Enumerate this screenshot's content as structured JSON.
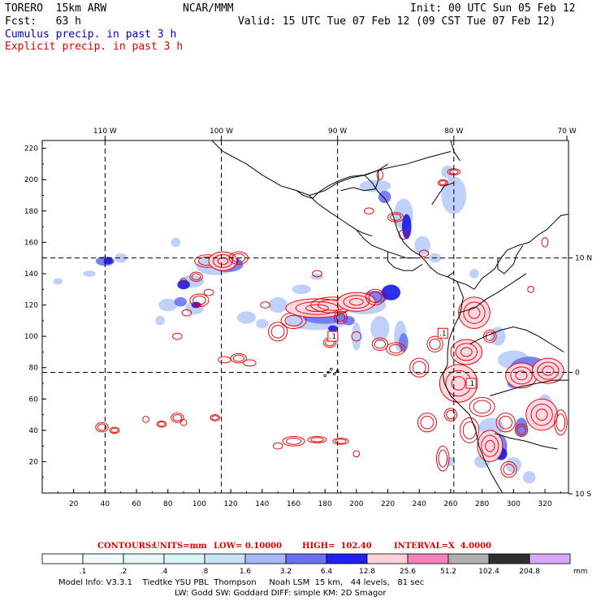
{
  "header": {
    "model": "TORERO  15km ARW",
    "org": "NCAR/MMM",
    "init": "Init: 00 UTC Sun 05 Feb 12",
    "fcst": "Fcst:   63 h",
    "valid": "Valid: 15 UTC Tue 07 Feb 12 (09 CST Tue 07 Feb 12)",
    "legend_cumulus": "Cumulus precip. in past 3 h",
    "legend_explicit": "Explicit precip. in past 3 h"
  },
  "map": {
    "lon_labels": [
      "110 W",
      "100 W",
      "90 W",
      "80 W",
      "70 W"
    ],
    "lat_labels": [
      "10 N",
      "0",
      "10 S"
    ],
    "x_ticks": [
      "20",
      "40",
      "60",
      "80",
      "100",
      "120",
      "140",
      "160",
      "180",
      "200",
      "220",
      "240",
      "260",
      "280",
      "300",
      "320"
    ],
    "y_ticks": [
      "20",
      "40",
      "60",
      "80",
      "100",
      "120",
      "140",
      "160",
      "180",
      "200",
      "220"
    ],
    "x_range": [
      0,
      335
    ],
    "y_range": [
      0,
      225
    ],
    "grid_lines": {
      "lon_x": [
        40,
        114,
        188,
        262
      ],
      "lat_y": [
        150,
        77
      ]
    },
    "markers": [
      {
        "label": ".1",
        "x": 185,
        "y": 100
      },
      {
        "label": ".1",
        "x": 255,
        "y": 102
      },
      {
        "label": ".1",
        "x": 273,
        "y": 70
      }
    ],
    "colors": {
      "cumulus": "#0000ee",
      "explicit": "#e00000",
      "coast": "#000000"
    }
  },
  "contours_info": {
    "label": "CONTOURS:",
    "units": "UNITS=mm",
    "low": "LOW= 0.10000",
    "high": "HIGH=  102.40",
    "interval": "INTERVAL=X  4.0000"
  },
  "colorbar": {
    "labels": [
      ".1",
      ".2",
      ".4",
      ".8",
      "1.6",
      "3.2",
      "6.4",
      "12.8",
      "25.6",
      "51.2",
      "102.4",
      "204.8"
    ],
    "unit": "mm",
    "colors": [
      "#ffffff",
      "#f2fbff",
      "#e4f6f8",
      "#d8f6f6",
      "#c8e0f8",
      "#a8b8f8",
      "#6a70f0",
      "#2020f0",
      "#ffd0d8",
      "#f880b8",
      "#b0b0b0",
      "#303030",
      "#d8a8f8"
    ]
  },
  "model_info": {
    "line1": "Model Info: V3.3.1    Tiedtke YSU PBL  Thompson     Noah LSM  15 km,   44 levels,   81 sec",
    "line2": "LW: Godd SW: Goddard DIFF: simple KM: 2D Smagor"
  }
}
